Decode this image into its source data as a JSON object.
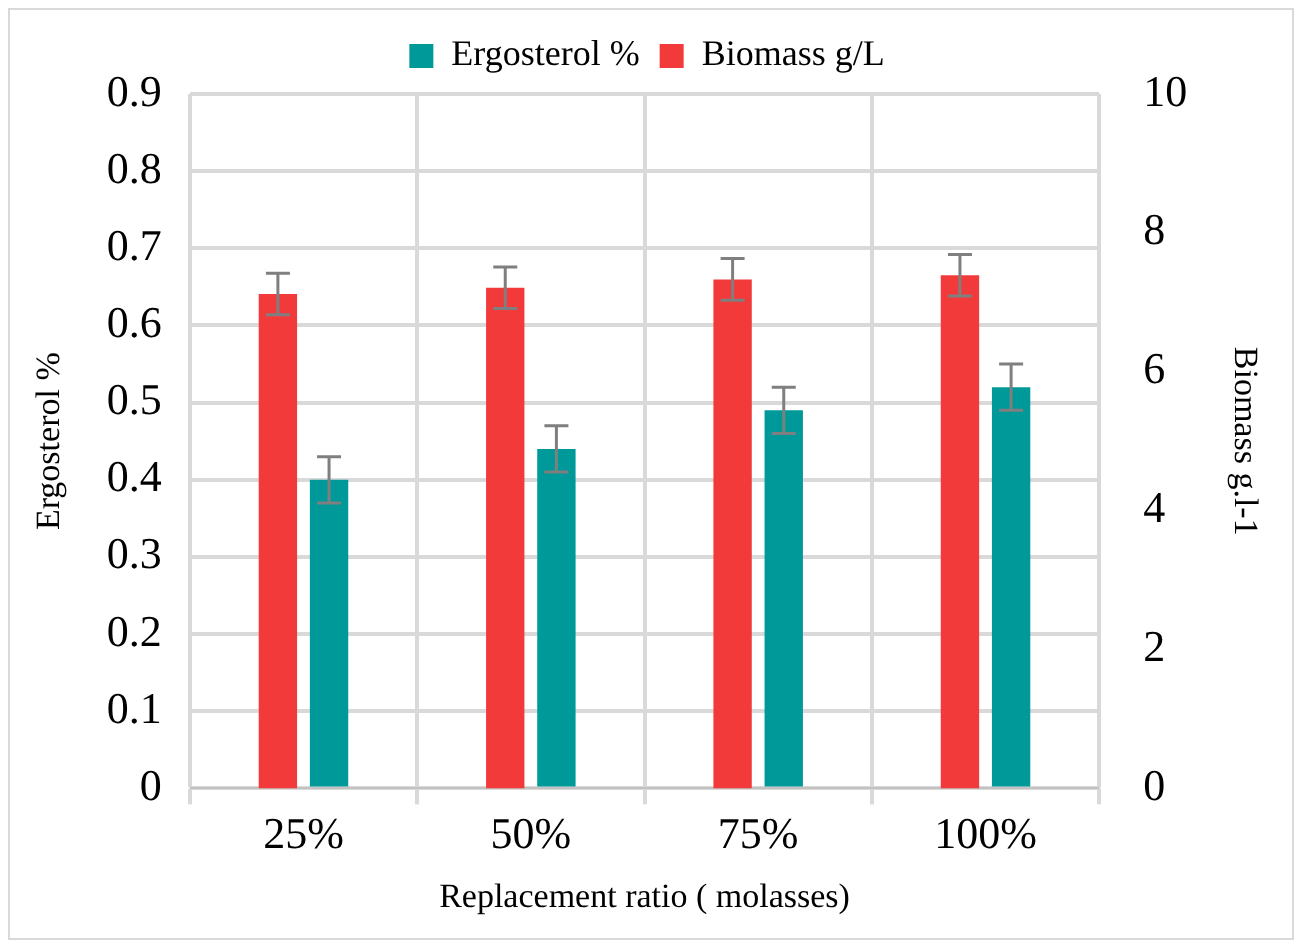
{
  "chart_data": {
    "type": "bar",
    "xlabel": "Replacement ratio ( molasses)",
    "ylabel": "Ergosterol %",
    "y2label": "Biomass g.l-1",
    "categories": [
      "25%",
      "50%",
      "75%",
      "100%"
    ],
    "series": [
      {
        "name": "Biomass g/L",
        "color": "#f33a3a",
        "axis": "y2",
        "values": [
          7.12,
          7.21,
          7.33,
          7.39
        ],
        "errors": [
          0.3,
          0.3,
          0.3,
          0.3
        ]
      },
      {
        "name": "Ergosterol %",
        "color": "#009999",
        "values": [
          0.4,
          0.44,
          0.49,
          0.52
        ],
        "errors": [
          0.03,
          0.03,
          0.03,
          0.03
        ]
      }
    ],
    "ylim": [
      0,
      0.9
    ],
    "yticks": [
      0,
      0.1,
      0.2,
      0.3,
      0.4,
      0.5,
      0.6,
      0.7,
      0.8,
      0.9
    ],
    "y2lim": [
      0,
      10
    ],
    "y2ticks": [
      0,
      2,
      4,
      6,
      8,
      10
    ],
    "grid": true,
    "legend": "top"
  }
}
